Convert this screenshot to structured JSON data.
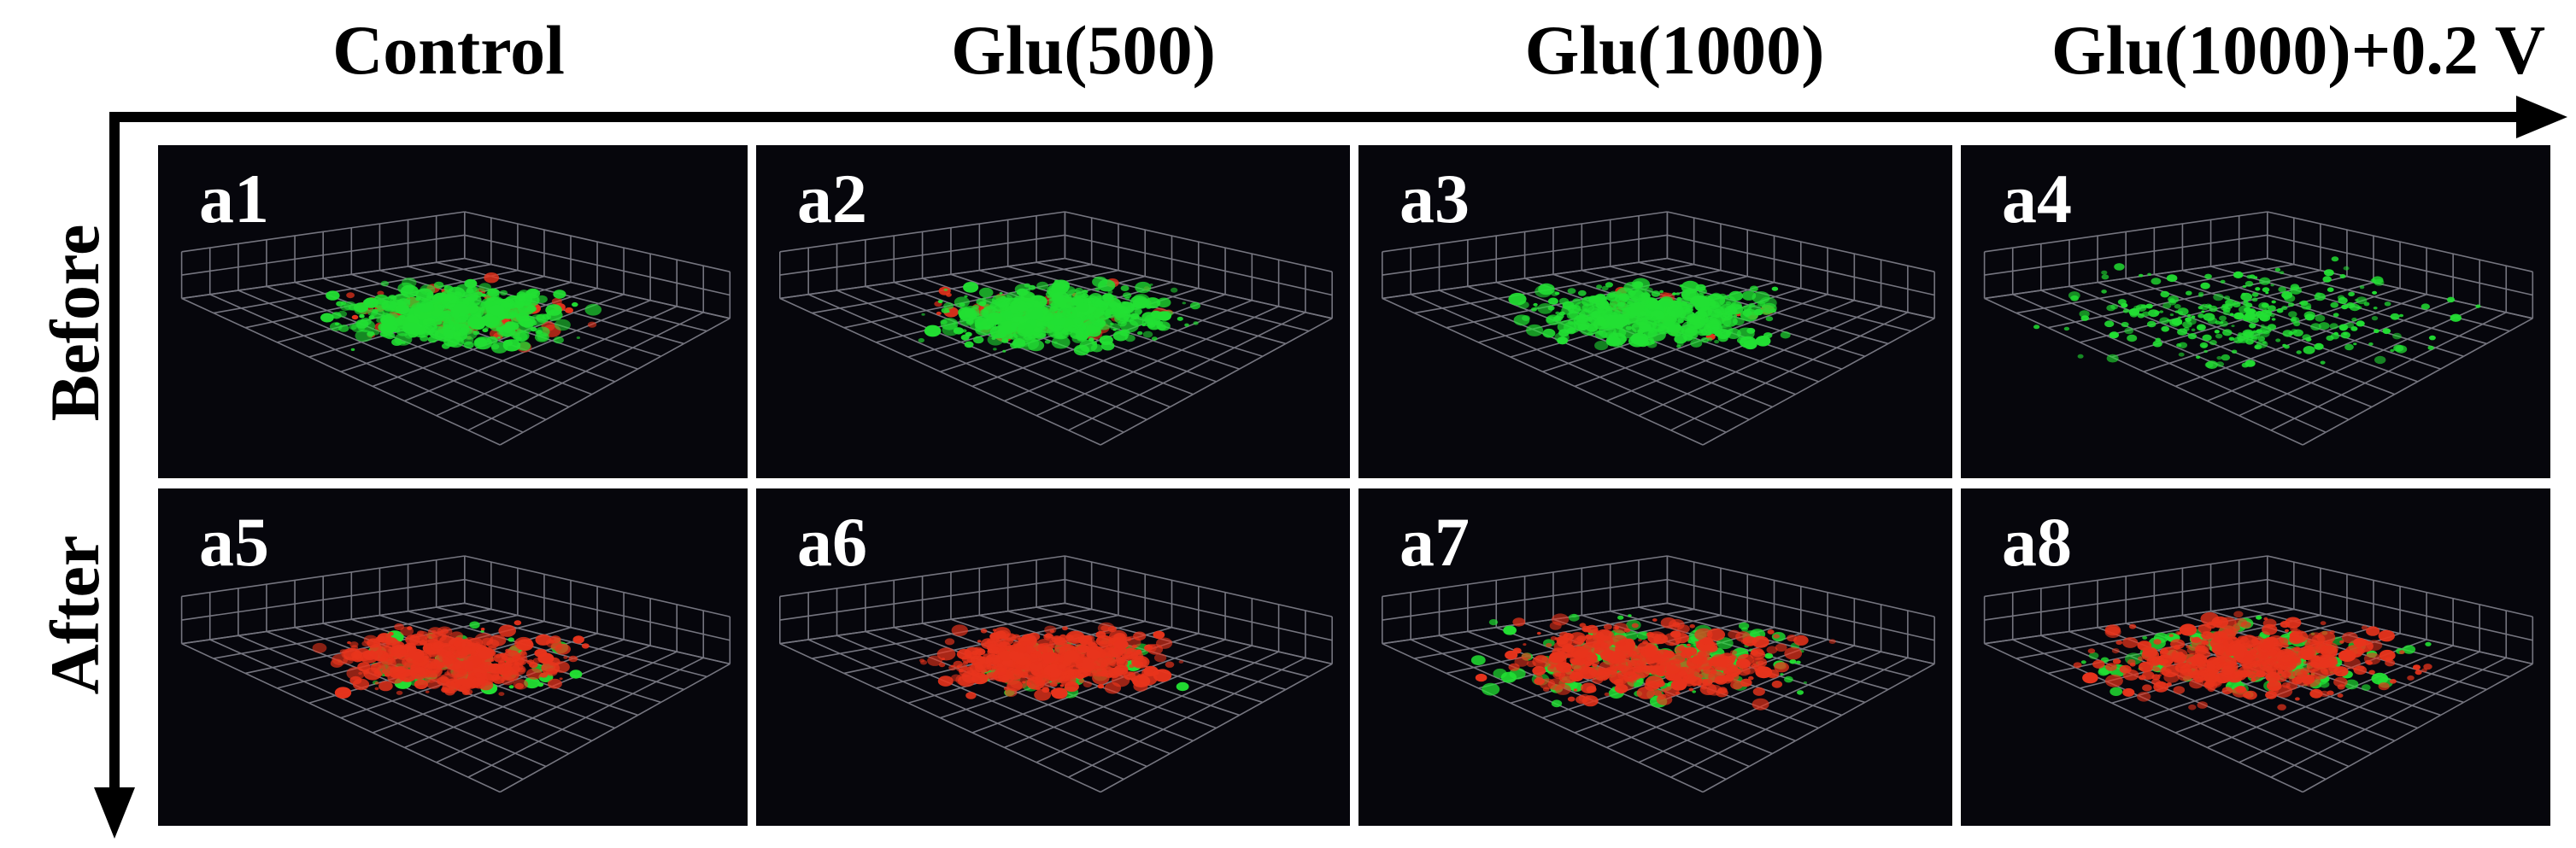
{
  "columns": [
    "Control",
    "Glu(500)",
    "Glu(1000)",
    "Glu(1000)+0.2 V"
  ],
  "rows": [
    "Before",
    "After"
  ],
  "panels": [
    {
      "label": "a1",
      "green_level": 0.75,
      "red_level": 0.15
    },
    {
      "label": "a2",
      "green_level": 0.9,
      "red_level": 0.12
    },
    {
      "label": "a3",
      "green_level": 0.8,
      "red_level": 0.03
    },
    {
      "label": "a4",
      "green_level": 0.55,
      "red_level": 0.0
    },
    {
      "label": "a5",
      "green_level": 0.12,
      "red_level": 0.7
    },
    {
      "label": "a6",
      "green_level": 0.1,
      "red_level": 0.9
    },
    {
      "label": "a7",
      "green_level": 0.3,
      "red_level": 0.7
    },
    {
      "label": "a8",
      "green_level": 0.25,
      "red_level": 0.75
    }
  ],
  "colors": {
    "background": "#06060c",
    "grid": "#9a9aa6",
    "green": "#22e033",
    "red": "#e8341c",
    "axis": "#000000",
    "label": "#ffffff"
  }
}
